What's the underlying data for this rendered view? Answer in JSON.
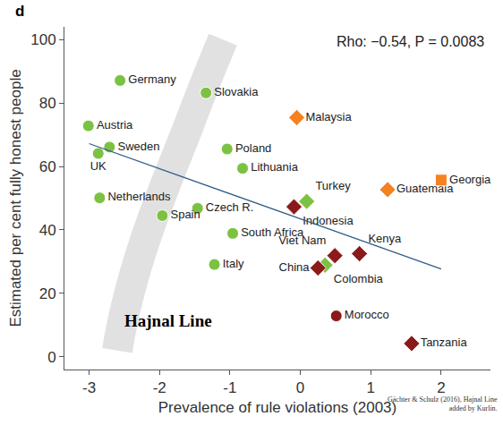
{
  "chart_data": {
    "type": "scatter",
    "title": "d",
    "x_label": "Prevalence of rule violations (2003)",
    "y_label": "Estimated per cent fully honest people",
    "xlim": [
      -3.35,
      2.7
    ],
    "xticks": [
      -3,
      -2,
      -1,
      0,
      1,
      2
    ],
    "ylim": [
      -4,
      104
    ],
    "yticks": [
      0,
      20,
      40,
      60,
      80,
      100
    ],
    "grid": false,
    "annotations": [
      {
        "text": "Rho: −0.54, P = 0.0083"
      },
      {
        "text": "Hajnal Line",
        "x": -2.52,
        "y": 11.5
      }
    ],
    "source": [
      "Gächter & Schulz (2016), Hajnal Line",
      "added by Kurlin."
    ],
    "series": [
      {
        "color": "#7cc242",
        "marker": "circle",
        "labels": [
          "Germany",
          "Slovakia",
          "Austria",
          "Sweden",
          "UK",
          "Poland",
          "Lithuania",
          "Netherlands",
          "Czech R.",
          "Spain",
          "South Africa",
          "Italy"
        ],
        "x": [
          -2.56,
          -1.34,
          -3.01,
          -2.71,
          -2.87,
          -1.04,
          -0.82,
          -2.85,
          -1.46,
          -1.96,
          -0.96,
          -1.22
        ],
        "values": [
          87.1,
          83.2,
          72.8,
          66.1,
          64.1,
          65.5,
          59.4,
          50.1,
          46.8,
          44.5,
          38.9,
          29.1
        ]
      },
      {
        "color": "#7cc242",
        "marker": "diamond",
        "labels": [
          "Turkey",
          "Colombia"
        ],
        "x": [
          0.09,
          0.35
        ],
        "values": [
          49.0,
          28.9
        ]
      },
      {
        "color": "#8b1a1a",
        "marker": "diamond",
        "labels": [
          "Indonesia",
          "Viet Nam",
          "China",
          "Kenya",
          "Tanzania"
        ],
        "x": [
          -0.09,
          0.49,
          0.25,
          0.84,
          1.58
        ],
        "values": [
          47.3,
          31.9,
          28.0,
          32.5,
          4.2
        ]
      },
      {
        "color": "#8b1a1a",
        "marker": "circle",
        "labels": [
          "Morocco"
        ],
        "x": [
          0.51
        ],
        "values": [
          12.9
        ]
      },
      {
        "color": "#f5821f",
        "marker": "diamond",
        "labels": [
          "Malaysia",
          "Guatemala"
        ],
        "x": [
          -0.05,
          1.24
        ],
        "values": [
          75.4,
          52.7
        ]
      },
      {
        "color": "#f5821f",
        "marker": "square",
        "labels": [
          "Georgia"
        ],
        "x": [
          2.0
        ],
        "values": [
          55.7
        ]
      },
      {
        "type": "line",
        "color": "#2e5c8a",
        "line_style": "solid",
        "x": [
          -3,
          2
        ],
        "values": [
          67.2,
          27.7
        ]
      }
    ]
  }
}
